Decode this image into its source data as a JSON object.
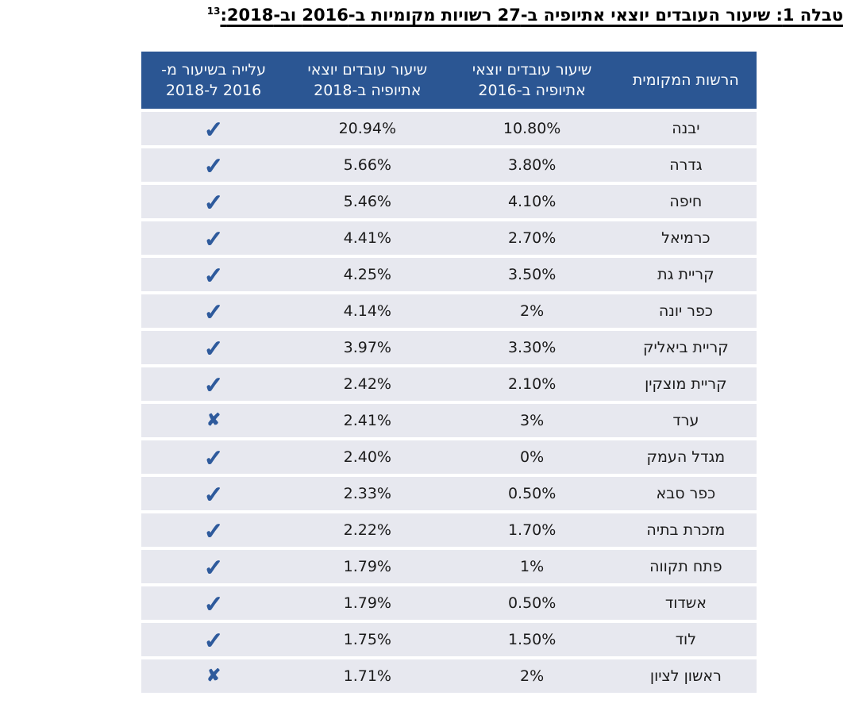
{
  "document": {
    "title_text": "טבלה 1: שיעור העובדים יוצאי אתיופיה ב-27 רשויות מקומיות ב-2016 וב-2018:",
    "footnote_marker": "13"
  },
  "table": {
    "columns": [
      {
        "id": "authority",
        "lines": [
          "הרשות המקומית"
        ]
      },
      {
        "id": "rate_2016",
        "lines": [
          "שיעור עובדים יוצאי",
          "אתיופיה ב-2016"
        ]
      },
      {
        "id": "rate_2018",
        "lines": [
          "שיעור עובדים יוצאי",
          "אתיופיה ב-2018"
        ]
      },
      {
        "id": "increase",
        "lines": [
          "עלייה בשיעור מ-",
          "2016 ל-2018"
        ]
      }
    ],
    "rows": [
      {
        "authority": "יבנה",
        "rate_2016": "10.80%",
        "rate_2018": "20.94%",
        "increase": "check"
      },
      {
        "authority": "גדרה",
        "rate_2016": "3.80%",
        "rate_2018": "5.66%",
        "increase": "check"
      },
      {
        "authority": "חיפה",
        "rate_2016": "4.10%",
        "rate_2018": "5.46%",
        "increase": "check"
      },
      {
        "authority": "כרמיאל",
        "rate_2016": "2.70%",
        "rate_2018": "4.41%",
        "increase": "check"
      },
      {
        "authority": "קריית גת",
        "rate_2016": "3.50%",
        "rate_2018": "4.25%",
        "increase": "check"
      },
      {
        "authority": "כפר יונה",
        "rate_2016": "2%",
        "rate_2018": "4.14%",
        "increase": "check"
      },
      {
        "authority": "קריית ביאליק",
        "rate_2016": "3.30%",
        "rate_2018": "3.97%",
        "increase": "check"
      },
      {
        "authority": "קריית מוצקין",
        "rate_2016": "2.10%",
        "rate_2018": "2.42%",
        "increase": "check"
      },
      {
        "authority": "ערד",
        "rate_2016": "3%",
        "rate_2018": "2.41%",
        "increase": "cross"
      },
      {
        "authority": "מגדל העמק",
        "rate_2016": "0%",
        "rate_2018": "2.40%",
        "increase": "check"
      },
      {
        "authority": "כפר סבא",
        "rate_2016": "0.50%",
        "rate_2018": "2.33%",
        "increase": "check"
      },
      {
        "authority": "מזכרת בתיה",
        "rate_2016": "1.70%",
        "rate_2018": "2.22%",
        "increase": "check"
      },
      {
        "authority": "פתח תקווה",
        "rate_2016": "1%",
        "rate_2018": "1.79%",
        "increase": "check"
      },
      {
        "authority": "אשדוד",
        "rate_2016": "0.50%",
        "rate_2018": "1.79%",
        "increase": "check"
      },
      {
        "authority": "לוד",
        "rate_2016": "1.50%",
        "rate_2018": "1.75%",
        "increase": "check"
      },
      {
        "authority": "ראשון לציון",
        "rate_2016": "2%",
        "rate_2018": "1.71%",
        "increase": "cross"
      }
    ]
  },
  "icons": {
    "check_icon": "✓",
    "cross_icon": "✘"
  },
  "colors": {
    "header_bg": "#2B5693",
    "header_text": "#F8FAFC",
    "row_bg": "#E7E8EF",
    "mark_blue": "#2E5A9C",
    "title_text": "#000000"
  }
}
